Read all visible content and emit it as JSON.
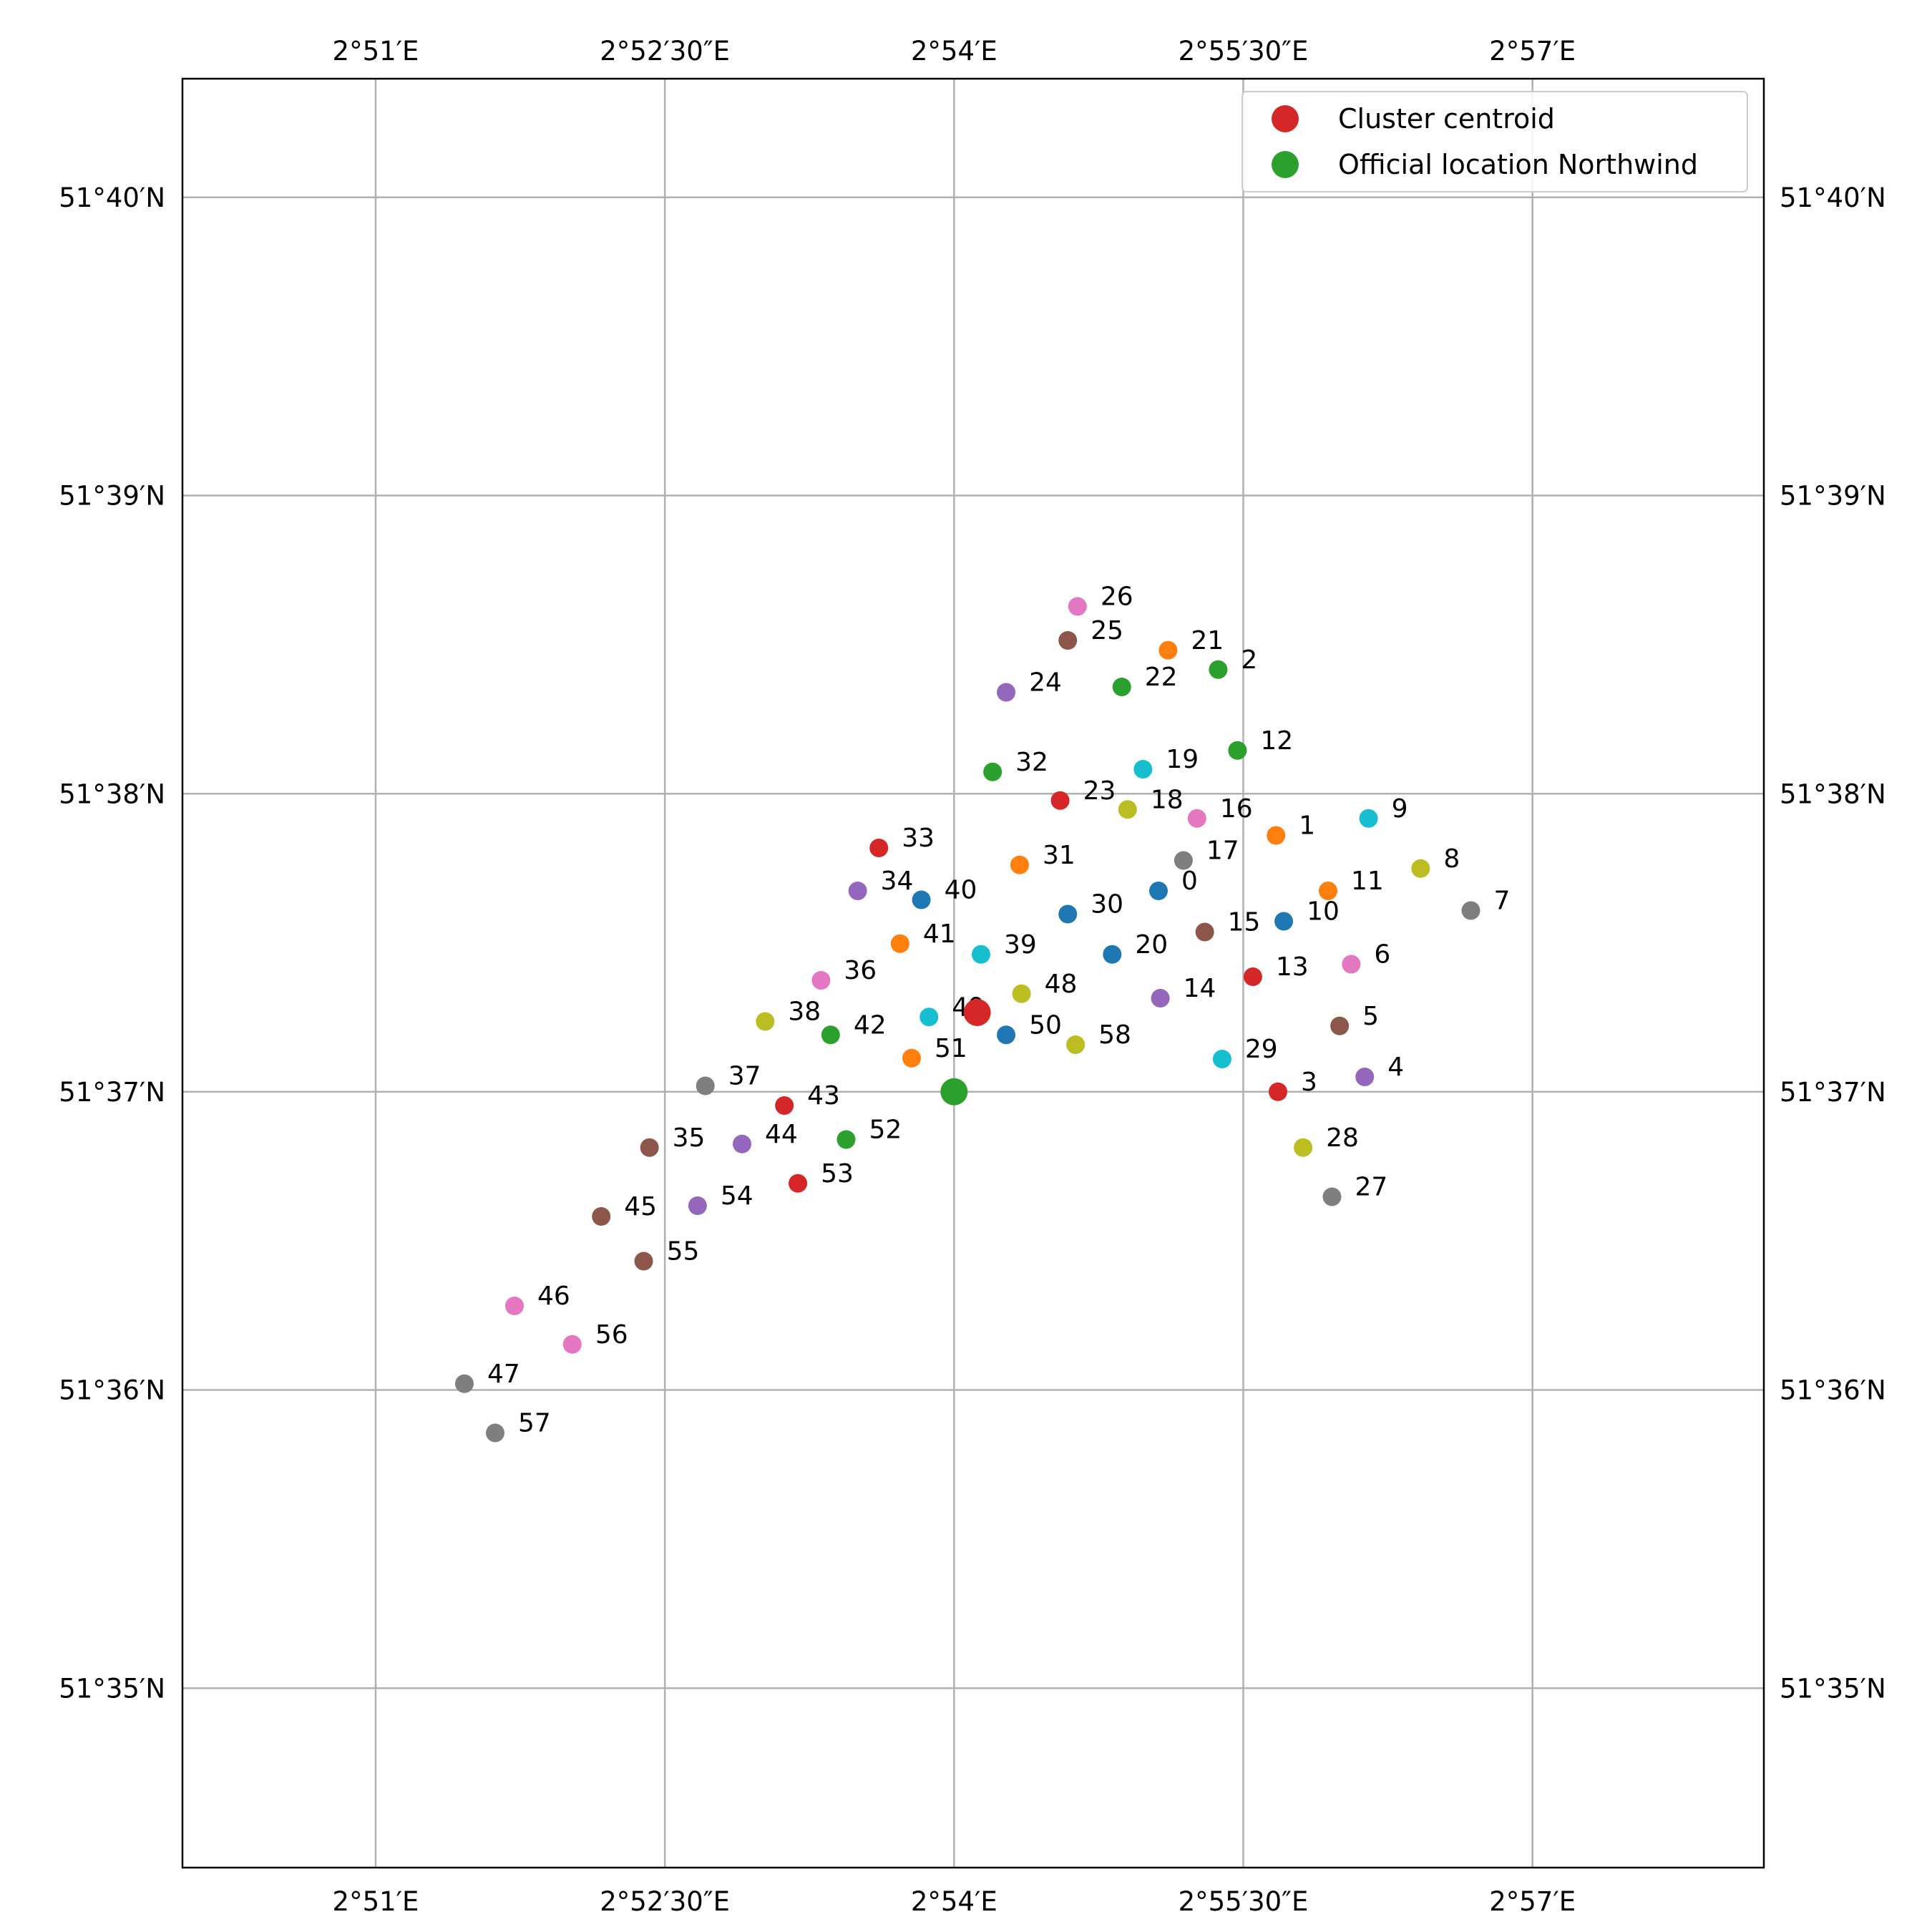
{
  "chart_data": {
    "type": "scatter",
    "title": "",
    "xlabel": "",
    "ylabel": "",
    "xlim": [
      2.8333,
      2.97
    ],
    "ylim": [
      51.5733,
      51.6733
    ],
    "grid": true,
    "legend_position": "top-right",
    "x_ticks": [
      {
        "value": 2.85,
        "label": "2°51′E"
      },
      {
        "value": 2.875,
        "label": "2°52′30″E"
      },
      {
        "value": 2.9,
        "label": "2°54′E"
      },
      {
        "value": 2.925,
        "label": "2°55′30″E"
      },
      {
        "value": 2.95,
        "label": "2°57′E"
      }
    ],
    "y_ticks": [
      {
        "value": 51.58333,
        "label": "51°35′N"
      },
      {
        "value": 51.6,
        "label": "51°36′N"
      },
      {
        "value": 51.61667,
        "label": "51°37′N"
      },
      {
        "value": 51.63333,
        "label": "51°38′N"
      },
      {
        "value": 51.65,
        "label": "51°39′N"
      },
      {
        "value": 51.66667,
        "label": "51°40′N"
      }
    ],
    "palette": [
      "#1f77b4",
      "#ff7f0e",
      "#2ca02c",
      "#d62728",
      "#9467bd",
      "#8c564b",
      "#e377c2",
      "#7f7f7f",
      "#bcbd22",
      "#17becf"
    ],
    "points": [
      {
        "id": "0",
        "lon": 2.91767,
        "lat": 51.6279
      },
      {
        "id": "1",
        "lon": 2.92783,
        "lat": 51.631
      },
      {
        "id": "2",
        "lon": 2.92283,
        "lat": 51.64027
      },
      {
        "id": "3",
        "lon": 2.928,
        "lat": 51.61667
      },
      {
        "id": "4",
        "lon": 2.9355,
        "lat": 51.6175
      },
      {
        "id": "5",
        "lon": 2.93333,
        "lat": 51.62035
      },
      {
        "id": "6",
        "lon": 2.93433,
        "lat": 51.6238
      },
      {
        "id": "7",
        "lon": 2.94467,
        "lat": 51.6268
      },
      {
        "id": "8",
        "lon": 2.94033,
        "lat": 51.62915
      },
      {
        "id": "9",
        "lon": 2.93583,
        "lat": 51.63195
      },
      {
        "id": "10",
        "lon": 2.9285,
        "lat": 51.6262
      },
      {
        "id": "11",
        "lon": 2.93233,
        "lat": 51.6279
      },
      {
        "id": "12",
        "lon": 2.9245,
        "lat": 51.63575
      },
      {
        "id": "13",
        "lon": 2.92583,
        "lat": 51.6231
      },
      {
        "id": "14",
        "lon": 2.91783,
        "lat": 51.6219
      },
      {
        "id": "15",
        "lon": 2.92167,
        "lat": 51.6256
      },
      {
        "id": "16",
        "lon": 2.921,
        "lat": 51.63195
      },
      {
        "id": "17",
        "lon": 2.91983,
        "lat": 51.6296
      },
      {
        "id": "18",
        "lon": 2.915,
        "lat": 51.63245
      },
      {
        "id": "19",
        "lon": 2.91633,
        "lat": 51.6347
      },
      {
        "id": "20",
        "lon": 2.91367,
        "lat": 51.62435
      },
      {
        "id": "21",
        "lon": 2.9185,
        "lat": 51.64135
      },
      {
        "id": "22",
        "lon": 2.9145,
        "lat": 51.6393
      },
      {
        "id": "23",
        "lon": 2.90917,
        "lat": 51.63295
      },
      {
        "id": "24",
        "lon": 2.9045,
        "lat": 51.639
      },
      {
        "id": "25",
        "lon": 2.90983,
        "lat": 51.6419
      },
      {
        "id": "26",
        "lon": 2.91067,
        "lat": 51.6438
      },
      {
        "id": "27",
        "lon": 2.93267,
        "lat": 51.6108
      },
      {
        "id": "28",
        "lon": 2.93017,
        "lat": 51.61355
      },
      {
        "id": "29",
        "lon": 2.92317,
        "lat": 51.6185
      },
      {
        "id": "30",
        "lon": 2.90983,
        "lat": 51.6266
      },
      {
        "id": "31",
        "lon": 2.90567,
        "lat": 51.62935
      },
      {
        "id": "32",
        "lon": 2.90333,
        "lat": 51.63455
      },
      {
        "id": "33",
        "lon": 2.8935,
        "lat": 51.6303
      },
      {
        "id": "34",
        "lon": 2.89167,
        "lat": 51.6279
      },
      {
        "id": "35",
        "lon": 2.87367,
        "lat": 51.61355
      },
      {
        "id": "36",
        "lon": 2.8885,
        "lat": 51.6229
      },
      {
        "id": "37",
        "lon": 2.8785,
        "lat": 51.617
      },
      {
        "id": "38",
        "lon": 2.88367,
        "lat": 51.6206
      },
      {
        "id": "39",
        "lon": 2.90233,
        "lat": 51.62435
      },
      {
        "id": "40",
        "lon": 2.89717,
        "lat": 51.6274
      },
      {
        "id": "41",
        "lon": 2.89533,
        "lat": 51.62495
      },
      {
        "id": "42",
        "lon": 2.88933,
        "lat": 51.61985
      },
      {
        "id": "43",
        "lon": 2.88533,
        "lat": 51.6159
      },
      {
        "id": "44",
        "lon": 2.88167,
        "lat": 51.61375
      },
      {
        "id": "45",
        "lon": 2.8695,
        "lat": 51.6097
      },
      {
        "id": "46",
        "lon": 2.862,
        "lat": 51.6047
      },
      {
        "id": "47",
        "lon": 2.85767,
        "lat": 51.60035
      },
      {
        "id": "48",
        "lon": 2.90583,
        "lat": 51.62215
      },
      {
        "id": "49",
        "lon": 2.89783,
        "lat": 51.62085
      },
      {
        "id": "50",
        "lon": 2.9045,
        "lat": 51.61985
      },
      {
        "id": "51",
        "lon": 2.89633,
        "lat": 51.61855
      },
      {
        "id": "52",
        "lon": 2.89067,
        "lat": 51.614
      },
      {
        "id": "53",
        "lon": 2.8865,
        "lat": 51.61155
      },
      {
        "id": "54",
        "lon": 2.87783,
        "lat": 51.6103
      },
      {
        "id": "55",
        "lon": 2.87317,
        "lat": 51.6072
      },
      {
        "id": "56",
        "lon": 2.867,
        "lat": 51.60255
      },
      {
        "id": "57",
        "lon": 2.86033,
        "lat": 51.5976
      },
      {
        "id": "58",
        "lon": 2.9105,
        "lat": 51.6193
      }
    ],
    "centroid": {
      "label": "Cluster centroid",
      "lon": 2.902,
      "lat": 51.6211,
      "color": "#d62728"
    },
    "official": {
      "label": "Official location Northwind",
      "lon": 2.9,
      "lat": 51.61667,
      "color": "#2ca02c"
    }
  }
}
